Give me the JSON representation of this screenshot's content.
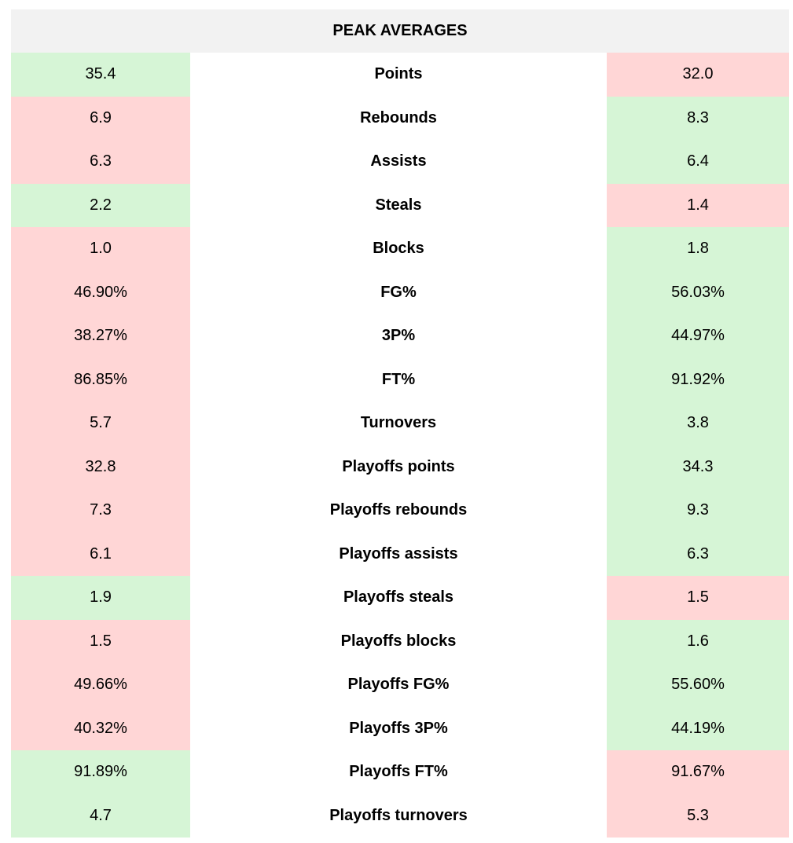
{
  "title": "PEAK AVERAGES",
  "colors": {
    "win": "#d6f5d6",
    "lose": "#ffd6d6",
    "header_bg": "#f2f2f2"
  },
  "rows": [
    {
      "label": "Points",
      "left": "35.4",
      "right": "32.0",
      "left_wins": true
    },
    {
      "label": "Rebounds",
      "left": "6.9",
      "right": "8.3",
      "left_wins": false
    },
    {
      "label": "Assists",
      "left": "6.3",
      "right": "6.4",
      "left_wins": false
    },
    {
      "label": "Steals",
      "left": "2.2",
      "right": "1.4",
      "left_wins": true
    },
    {
      "label": "Blocks",
      "left": "1.0",
      "right": "1.8",
      "left_wins": false
    },
    {
      "label": "FG%",
      "left": "46.90%",
      "right": "56.03%",
      "left_wins": false
    },
    {
      "label": "3P%",
      "left": "38.27%",
      "right": "44.97%",
      "left_wins": false
    },
    {
      "label": "FT%",
      "left": "86.85%",
      "right": "91.92%",
      "left_wins": false
    },
    {
      "label": "Turnovers",
      "left": "5.7",
      "right": "3.8",
      "left_wins": false
    },
    {
      "label": "Playoffs points",
      "left": "32.8",
      "right": "34.3",
      "left_wins": false
    },
    {
      "label": "Playoffs rebounds",
      "left": "7.3",
      "right": "9.3",
      "left_wins": false
    },
    {
      "label": "Playoffs assists",
      "left": "6.1",
      "right": "6.3",
      "left_wins": false
    },
    {
      "label": "Playoffs steals",
      "left": "1.9",
      "right": "1.5",
      "left_wins": true
    },
    {
      "label": "Playoffs blocks",
      "left": "1.5",
      "right": "1.6",
      "left_wins": false
    },
    {
      "label": "Playoffs FG%",
      "left": "49.66%",
      "right": "55.60%",
      "left_wins": false
    },
    {
      "label": "Playoffs 3P%",
      "left": "40.32%",
      "right": "44.19%",
      "left_wins": false
    },
    {
      "label": "Playoffs FT%",
      "left": "91.89%",
      "right": "91.67%",
      "left_wins": true
    },
    {
      "label": "Playoffs turnovers",
      "left": "4.7",
      "right": "5.3",
      "left_wins": true
    }
  ]
}
